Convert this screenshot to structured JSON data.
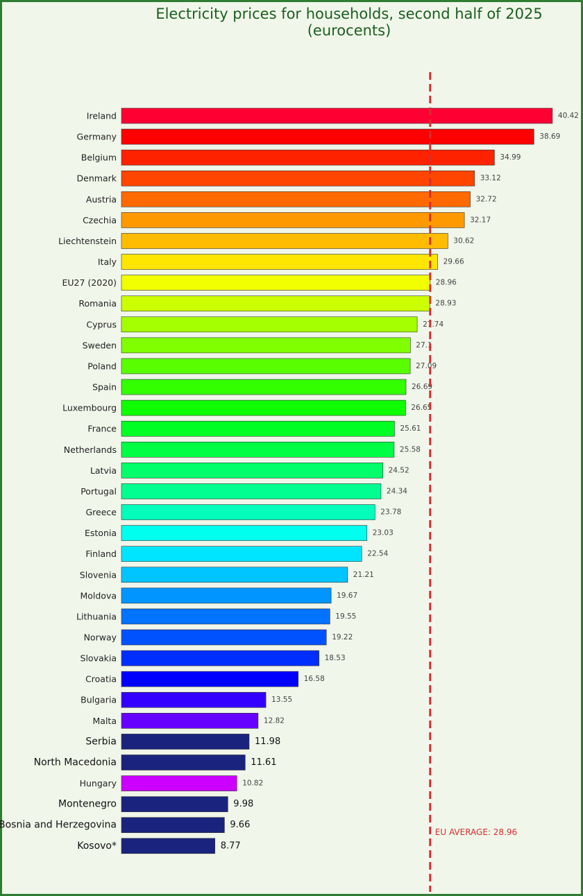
{
  "chart_data": {
    "type": "bar",
    "orientation": "horizontal",
    "title": "Electricity prices for households, second half of 2025\n(eurocents)",
    "categories": [
      "Ireland",
      "Germany",
      "Belgium",
      "Denmark",
      "Austria",
      "Czechia",
      "Liechtenstein",
      "Italy",
      "EU27 (2020)",
      "Romania",
      "Cyprus",
      "Sweden",
      "Poland",
      "Spain",
      "Luxembourg",
      "France",
      "Netherlands",
      "Latvia",
      "Portugal",
      "Greece",
      "Estonia",
      "Finland",
      "Slovenia",
      "Moldova",
      "Lithuania",
      "Norway",
      "Slovakia",
      "Croatia",
      "Bulgaria",
      "Malta",
      "Serbia",
      "North Macedonia",
      "Hungary",
      "Montenegro",
      "Bosnia and Herzegovina",
      "Kosovo*"
    ],
    "values": [
      40.42,
      38.69,
      34.99,
      33.12,
      32.72,
      32.17,
      30.62,
      29.66,
      28.96,
      28.93,
      27.74,
      27.1,
      27.09,
      26.69,
      26.65,
      25.61,
      25.58,
      24.52,
      24.34,
      23.78,
      23.03,
      22.54,
      21.21,
      19.67,
      19.55,
      19.22,
      18.53,
      16.58,
      13.55,
      12.82,
      11.98,
      11.61,
      10.82,
      9.98,
      9.66,
      8.77
    ],
    "value_labels": [
      "40.42",
      "38.69",
      "34.99",
      "33.12",
      "32.72",
      "32.17",
      "30.62",
      "29.66",
      "28.96",
      "28.93",
      "27.74",
      "27.1",
      "27.09",
      "26.69",
      "26.65",
      "25.61",
      "25.58",
      "24.52",
      "24.34",
      "23.78",
      "23.03",
      "22.54",
      "21.21",
      "19.67",
      "19.55",
      "19.22",
      "18.53",
      "16.58",
      "13.55",
      "12.82",
      "11.98",
      "11.61",
      "10.82",
      "9.98",
      "9.66",
      "8.77"
    ],
    "colors": [
      "#ff0033",
      "#ff0000",
      "#ff2200",
      "#ff4500",
      "#ff6a00",
      "#ff9900",
      "#ffbb00",
      "#ffe600",
      "#f2ff00",
      "#ccff00",
      "#a6ff00",
      "#80ff00",
      "#59ff00",
      "#33ff00",
      "#0dff00",
      "#00ff22",
      "#00ff44",
      "#00ff6a",
      "#00ff90",
      "#00ffbb",
      "#00ffee",
      "#00e5ff",
      "#00c4ff",
      "#0095ff",
      "#0073ff",
      "#0051ff",
      "#002eff",
      "#0000ff",
      "#3300ff",
      "#6600ff",
      "#1a237e",
      "#1a237e",
      "#cc00ff",
      "#1a237e",
      "#1a237e",
      "#1a237e"
    ],
    "highlighted_categories": [
      "Serbia",
      "North Macedonia",
      "Montenegro",
      "Bosnia and Herzegovina",
      "Kosovo*"
    ],
    "reference_line": {
      "value": 28.96,
      "label": "EU AVERAGE: 28.96",
      "color": "#d32f2f",
      "style": "dashed"
    },
    "xlim": [
      0,
      41.5
    ],
    "grid": false,
    "legend": "none"
  }
}
